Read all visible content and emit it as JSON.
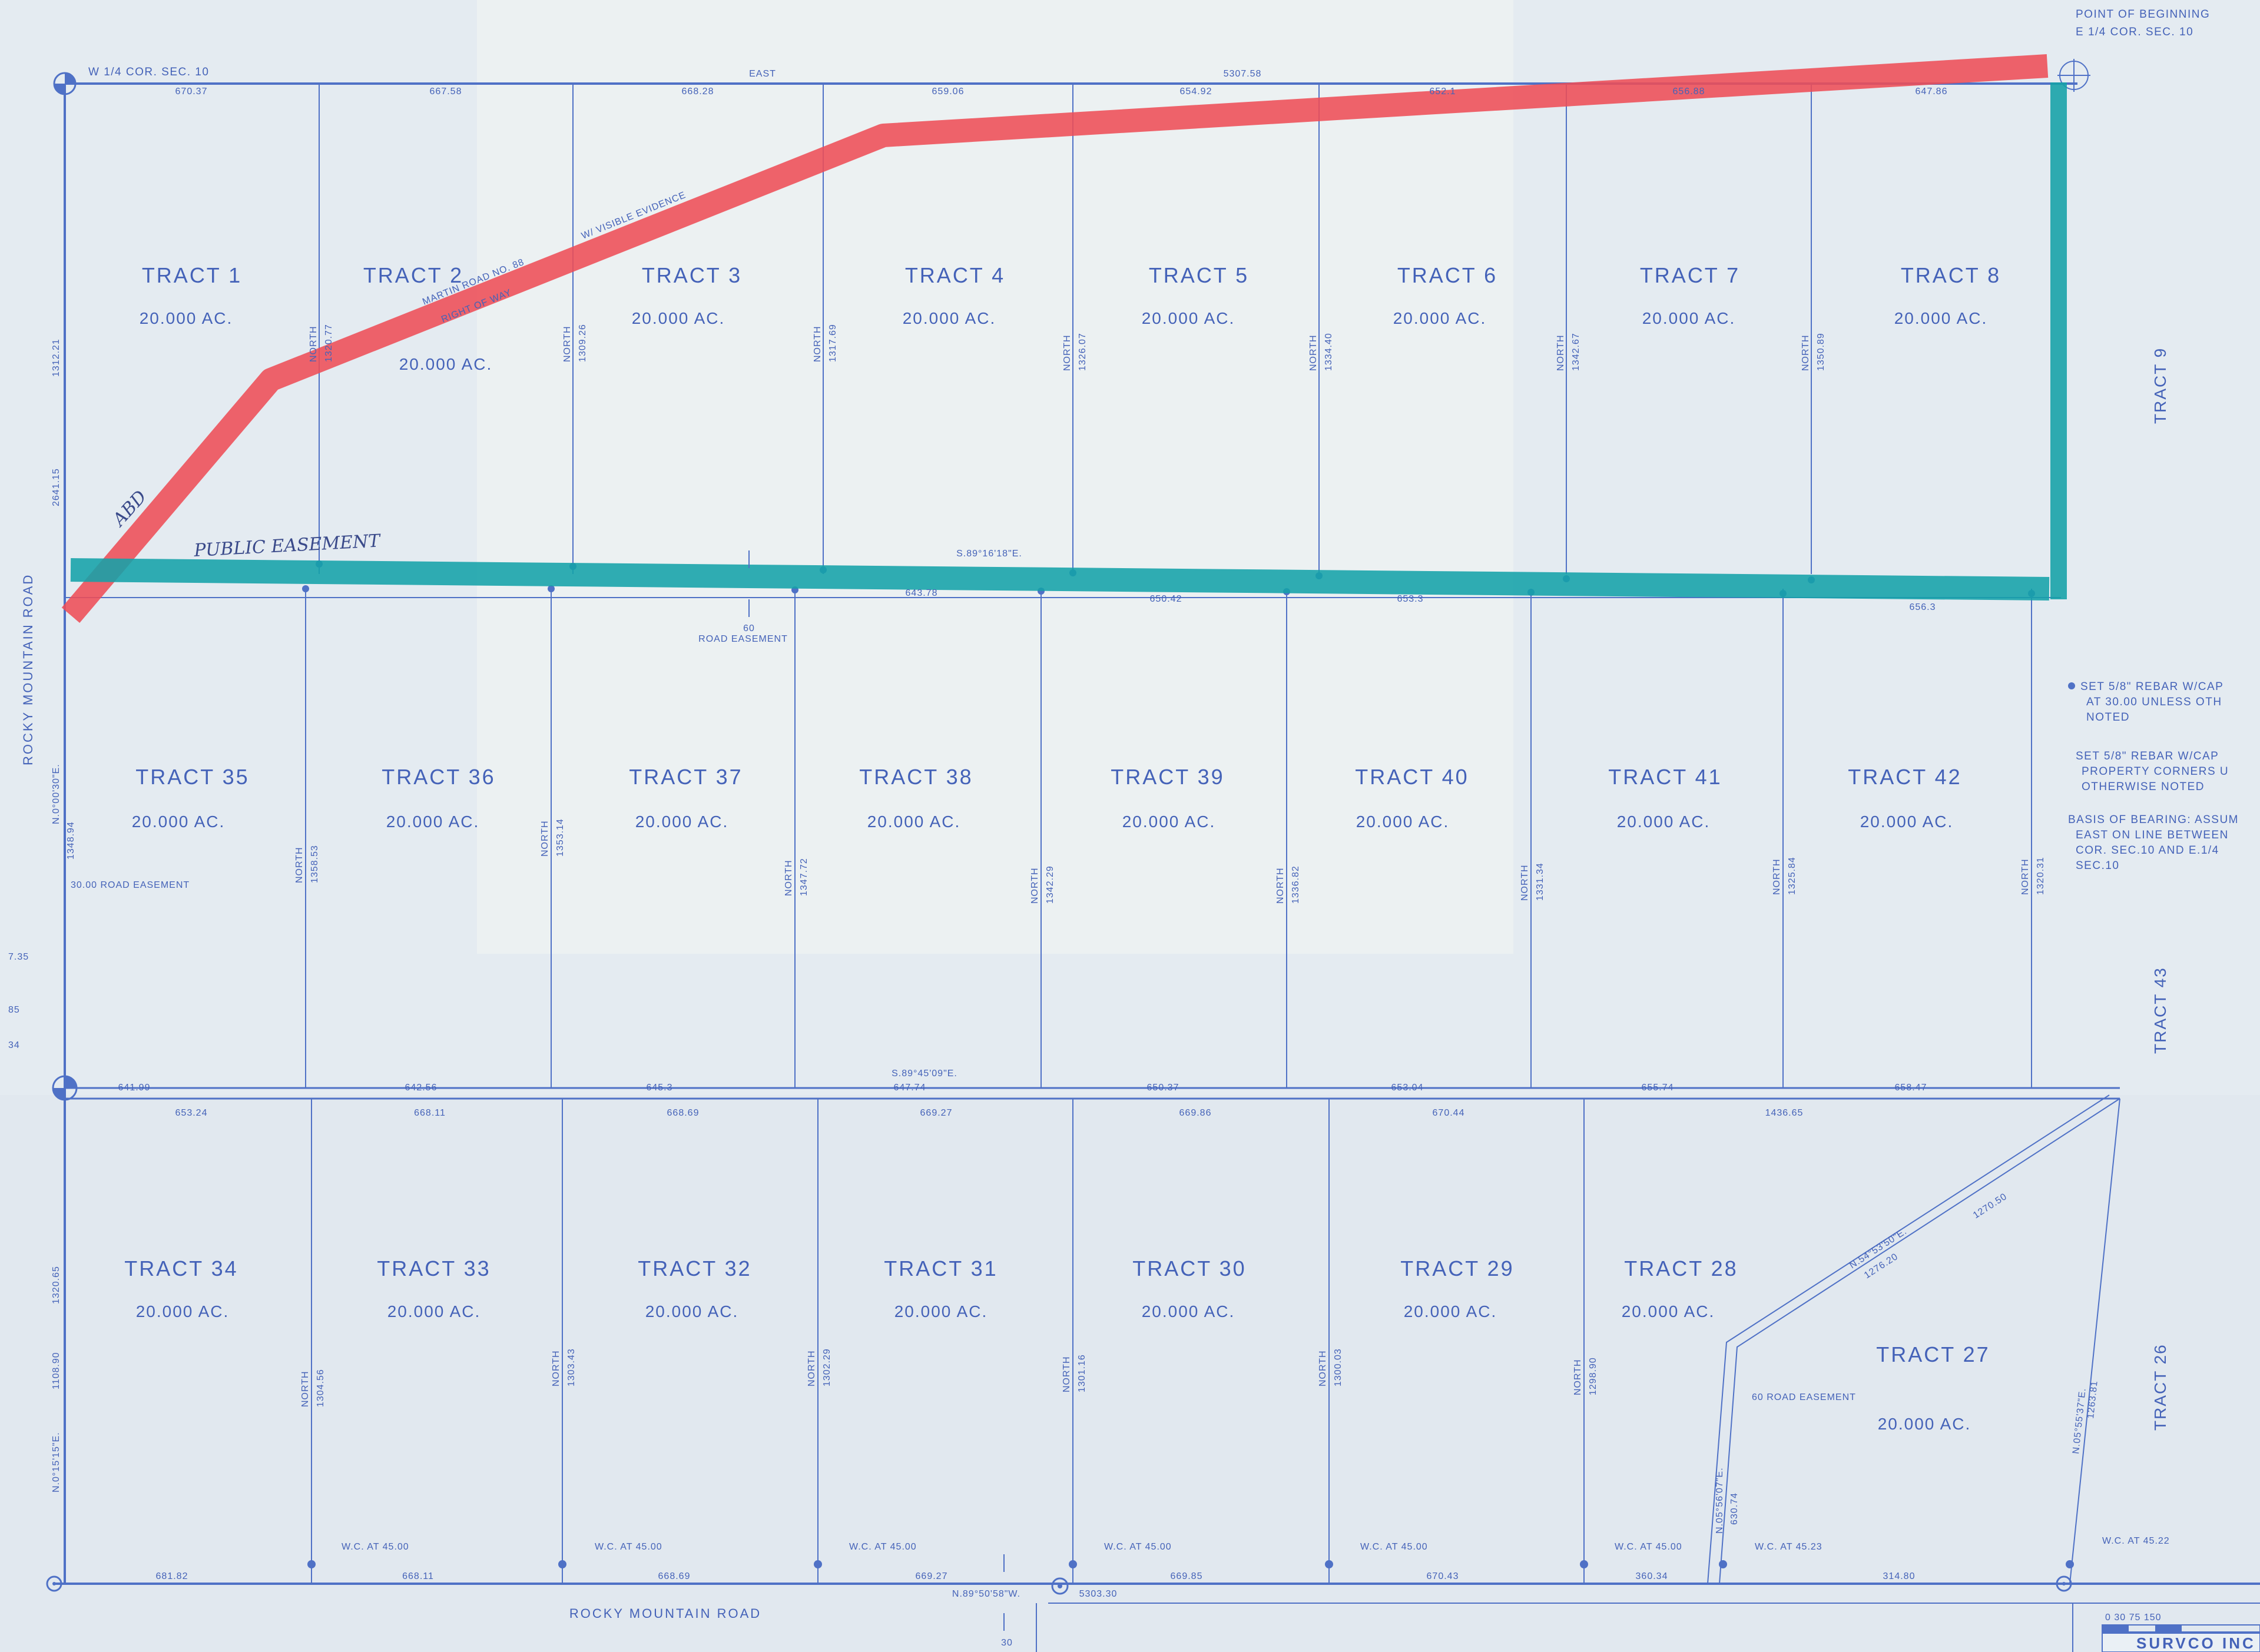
{
  "colors": {
    "paper": "#e3eaf0",
    "ink": "#4f71c6",
    "red_highlight": "#ee4d57",
    "teal_highlight": "#14a2a8"
  },
  "corners": {
    "w_quarter": "W 1/4 COR. SEC. 10",
    "pob_line1": "POINT OF BEGINNING",
    "pob_line2": "E 1/4 COR. SEC. 10"
  },
  "top_line": {
    "bearing": "EAST",
    "total": "5307.58"
  },
  "tracts": [
    {
      "name": "TRACT 1",
      "area": "20.000 AC."
    },
    {
      "name": "TRACT 2",
      "area": "20.000 AC."
    },
    {
      "name": "TRACT 3",
      "area": "20.000 AC."
    },
    {
      "name": "TRACT 4",
      "area": "20.000 AC."
    },
    {
      "name": "TRACT 5",
      "area": "20.000 AC."
    },
    {
      "name": "TRACT 6",
      "area": "20.000 AC."
    },
    {
      "name": "TRACT 7",
      "area": "20.000 AC."
    },
    {
      "name": "TRACT 8",
      "area": "20.000 AC."
    },
    {
      "name": "TRACT 35",
      "area": "20.000 AC."
    },
    {
      "name": "TRACT 36",
      "area": "20.000 AC."
    },
    {
      "name": "TRACT 37",
      "area": "20.000 AC."
    },
    {
      "name": "TRACT 38",
      "area": "20.000 AC."
    },
    {
      "name": "TRACT 39",
      "area": "20.000 AC."
    },
    {
      "name": "TRACT 40",
      "area": "20.000 AC."
    },
    {
      "name": "TRACT 41",
      "area": "20.000 AC."
    },
    {
      "name": "TRACT 42",
      "area": "20.000 AC."
    },
    {
      "name": "TRACT 34",
      "area": "20.000 AC."
    },
    {
      "name": "TRACT 33",
      "area": "20.000 AC."
    },
    {
      "name": "TRACT 32",
      "area": "20.000 AC."
    },
    {
      "name": "TRACT 31",
      "area": "20.000 AC."
    },
    {
      "name": "TRACT 30",
      "area": "20.000 AC."
    },
    {
      "name": "TRACT 29",
      "area": "20.000 AC."
    },
    {
      "name": "TRACT 28",
      "area": "20.000 AC."
    },
    {
      "name": "TRACT 27",
      "area": "20.000 AC."
    }
  ],
  "side_tracts": [
    "TRACT 9",
    "TRACT 43",
    "TRACT 26"
  ],
  "top_dims": [
    "670.37",
    "667.58",
    "668.28",
    "659.06",
    "654.92",
    "652.1",
    "656.88",
    "647.86"
  ],
  "row1_vert_dims": [
    "1320.77",
    "1309.26",
    "1317.69",
    "1326.07",
    "1334.40",
    "1342.67",
    "1350.89"
  ],
  "mid_line": {
    "bearing": "S.89°16'18\"E.",
    "easement": "60",
    "easement_label": "ROAD EASEMENT",
    "dims": [
      "643.78",
      "650.42",
      "653.3",
      "656.3"
    ]
  },
  "row2_vert_dims": [
    "1358.53",
    "1353.14",
    "1347.72",
    "1342.29",
    "1336.82",
    "1331.34",
    "1325.84",
    "1320.31"
  ],
  "row2_bottom": {
    "bearing": "S.89°45'09\"E.",
    "dims": [
      "641.99",
      "642.56",
      "645.3",
      "647.74",
      "650.37",
      "653.04",
      "655.74",
      "658.47"
    ]
  },
  "row3_top_dims": [
    "653.24",
    "668.11",
    "668.69",
    "669.27",
    "669.86",
    "670.44",
    "1436.65"
  ],
  "row3_vert_dims": [
    "1304.56",
    "1303.43",
    "1302.29",
    "1301.16",
    "1300.03",
    "1298.90"
  ],
  "diagonal": {
    "bearing": "N.54°53'50\"E.",
    "dim1": "1276.20",
    "dim2": "1270.50",
    "lower_bearing": "N.05°56'07\"E.",
    "lower_dim": "630.74",
    "right_bearing": "N.05°55'37\"E.",
    "right_dim": "1263.81",
    "easement": "60 ROAD EASEMENT"
  },
  "bottom_line": {
    "bearing": "N.89°50'58\"W.",
    "total": "5303.30",
    "dims": [
      "681.82",
      "668.11",
      "668.69",
      "669.27",
      "669.85",
      "670.43",
      "360.34",
      "314.80"
    ],
    "easement": "30"
  },
  "west_line": {
    "bearing_top": "N.0°00'30\"E.",
    "total": "2641.15",
    "dims": [
      "1312.21",
      "1348.94",
      "1320.65",
      "1108.90"
    ],
    "lower_bearing": "N.0°15'15\"E.",
    "easement": "30.00 ROAD EASEMENT"
  },
  "wc_notes": [
    "W.C. AT 45.00",
    "W.C. AT 45.00",
    "W.C. AT 45.00",
    "W.C. AT 45.00",
    "W.C. AT 45.00",
    "W.C. AT 45.00",
    "W.C. AT 45.23",
    "W.C. AT 45.22"
  ],
  "north_label": "NORTH",
  "roads": {
    "west": "ROCKY MOUNTAIN ROAD",
    "south": "ROCKY MOUNTAIN ROAD"
  },
  "old_road": [
    "MARTIN ROAD NO. 88",
    "W/ VISIBLE EVIDENCE",
    "RIGHT OF WAY"
  ],
  "handwritten": {
    "easement": "PUBLIC EASEMENT",
    "red_label": "ABD"
  },
  "legend": [
    [
      "SET 5/8\" REBAR W/CAP",
      "AT 30.00 UNLESS OTH",
      "NOTED"
    ],
    [
      "SET 5/8\" REBAR W/CAP",
      "PROPERTY CORNERS U",
      "OTHERWISE NOTED"
    ],
    [
      "BASIS OF BEARING: ASSUM",
      "EAST ON LINE BETWEEN",
      "COR. SEC.10 AND E.1/4",
      "SEC.10"
    ]
  ],
  "stamp": {
    "scale": "0 30 75 150",
    "company": "SURVCO INC"
  },
  "left_edge_dims": [
    "7.35",
    "85",
    "34"
  ]
}
